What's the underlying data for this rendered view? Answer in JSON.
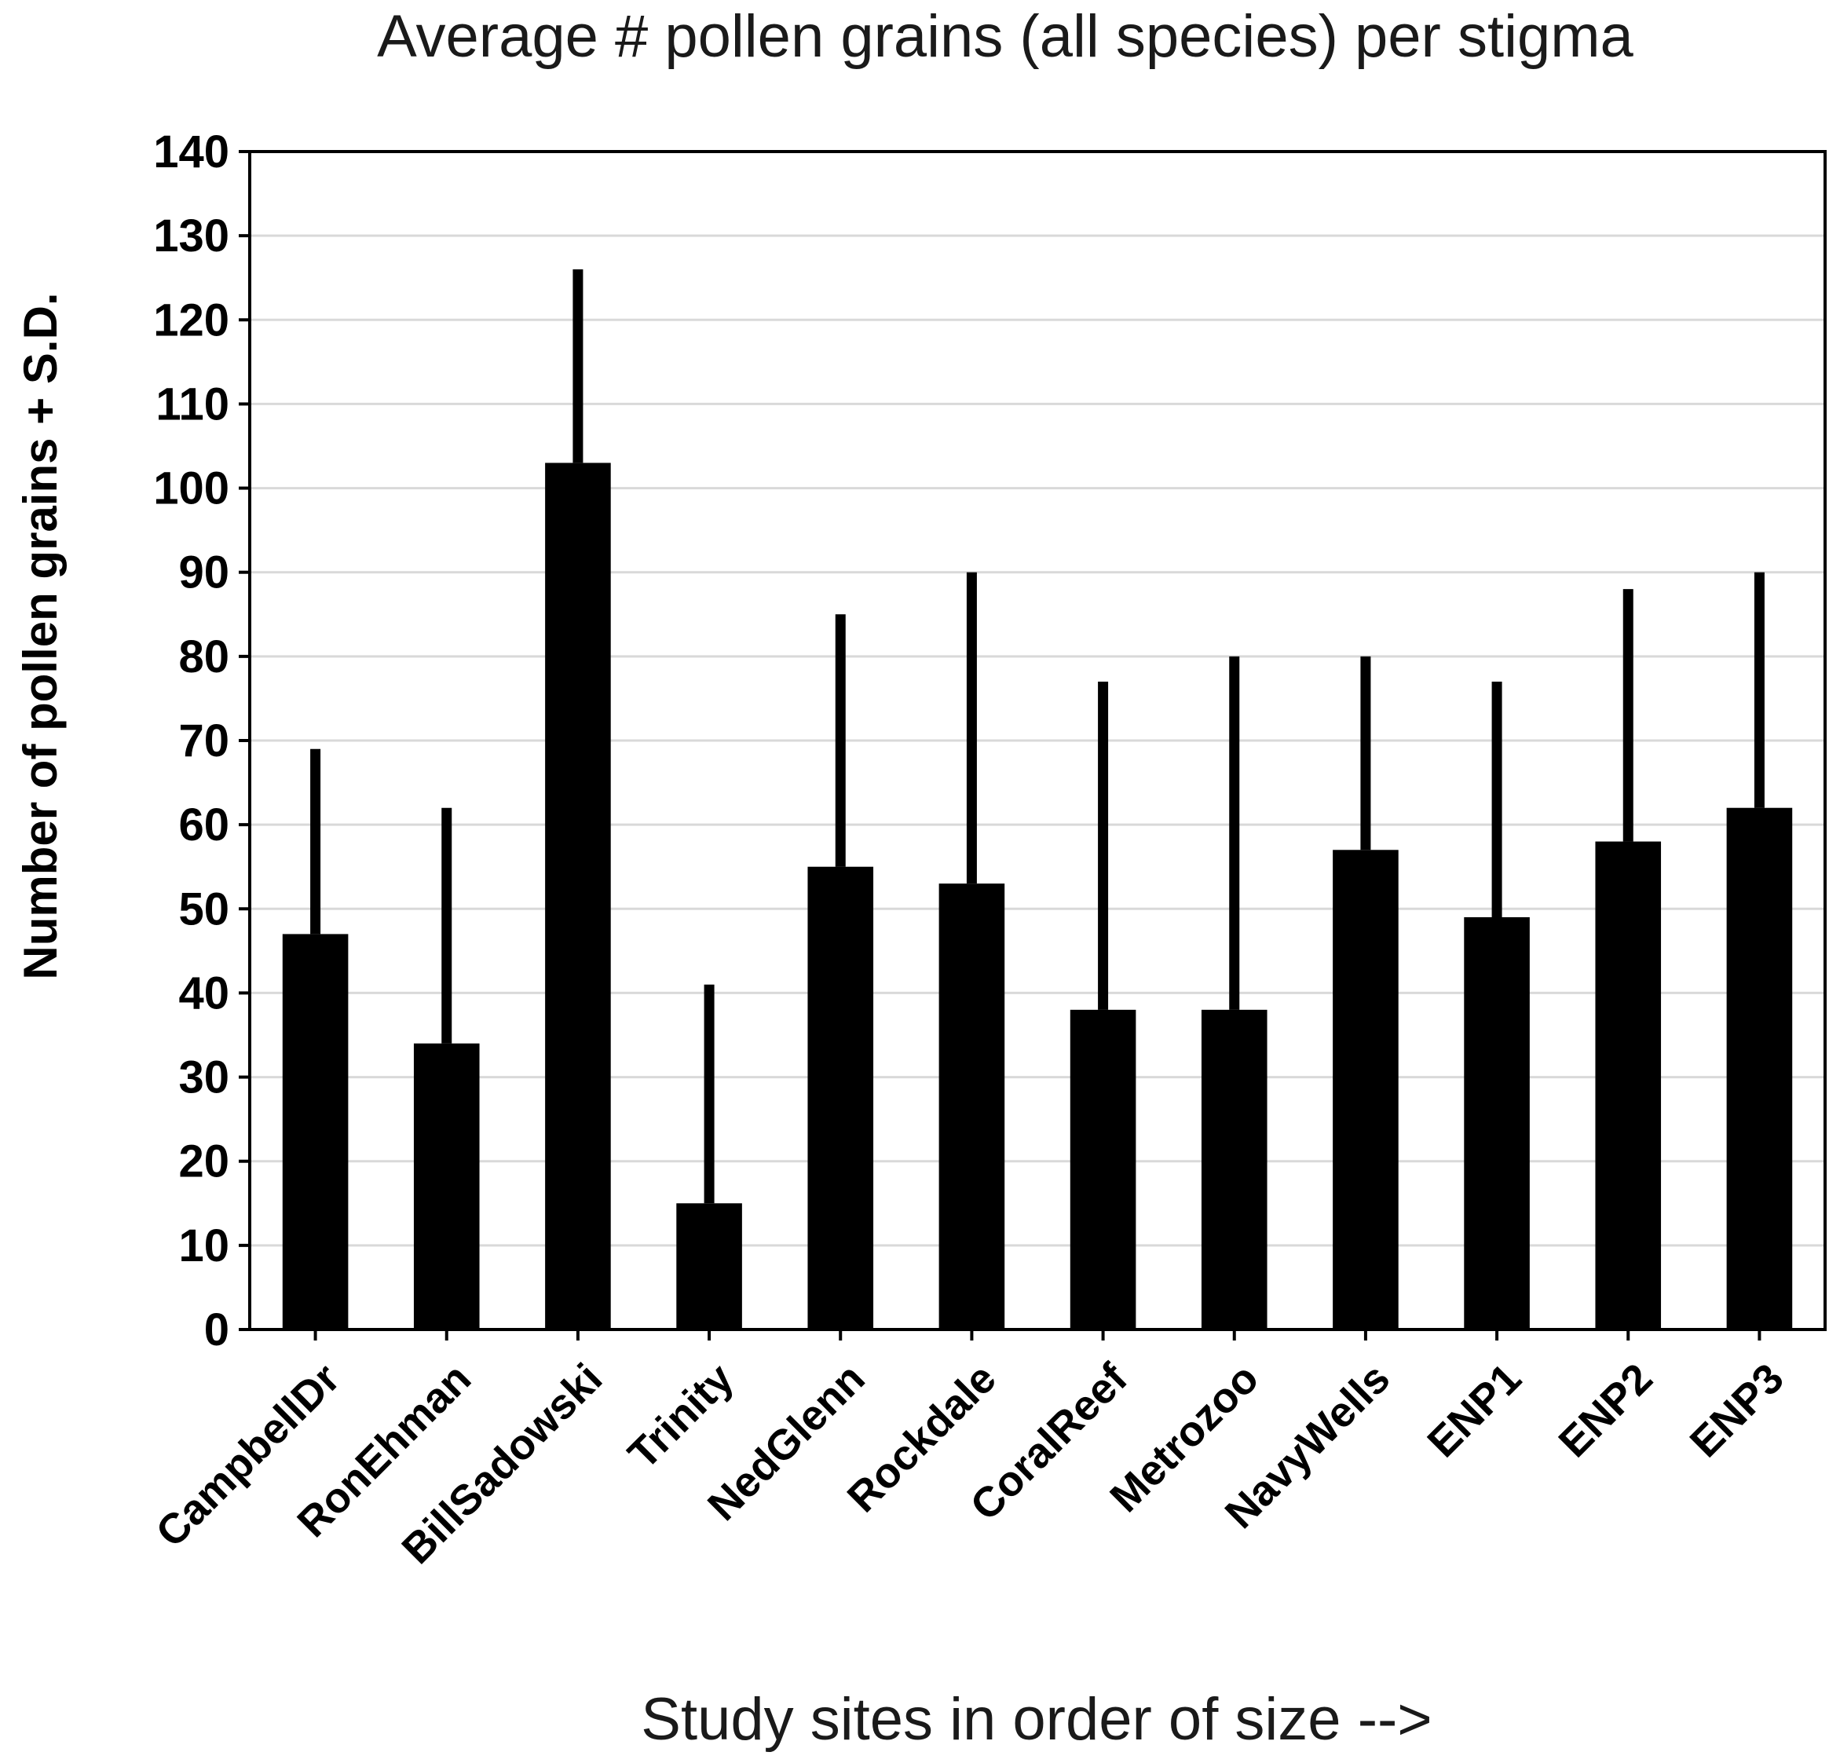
{
  "chart_data": {
    "type": "bar",
    "title": "Average # pollen grains (all species) per stigma",
    "xlabel": "Study sites in order of size -->",
    "ylabel": "Number of pollen grains + S.D.",
    "ylim": [
      0,
      140
    ],
    "yticks": [
      0,
      10,
      20,
      30,
      40,
      50,
      60,
      70,
      80,
      90,
      100,
      110,
      120,
      130,
      140
    ],
    "grid": true,
    "legend": "none",
    "bar_color": "#000000",
    "grid_color": "#d9d9d9",
    "categories": [
      "CampbellDr",
      "RonEhman",
      "BillSadowski",
      "Trinity",
      "NedGlenn",
      "Rockdale",
      "CoralReef",
      "Metrozoo",
      "NavyWells",
      "ENP1",
      "ENP2",
      "ENP3"
    ],
    "values": [
      47,
      34,
      103,
      15,
      55,
      53,
      38,
      38,
      57,
      49,
      58,
      62
    ],
    "error_upper": [
      69,
      62,
      126,
      41,
      85,
      90,
      77,
      80,
      80,
      77,
      88,
      90
    ]
  }
}
